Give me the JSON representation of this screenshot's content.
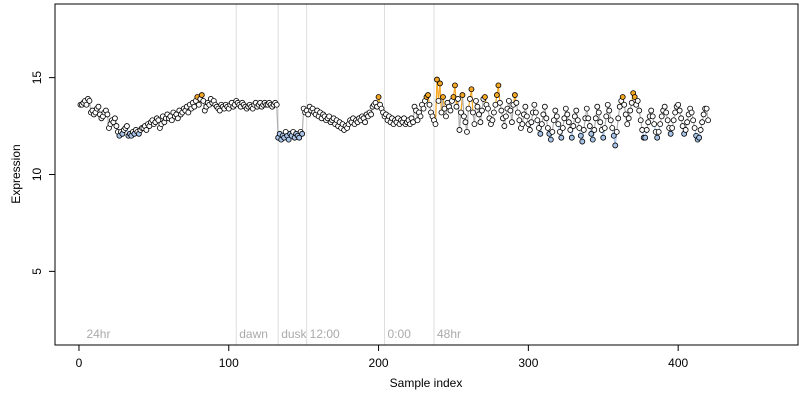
{
  "chart_data": {
    "type": "scatter",
    "title": "",
    "xlabel": "Sample index",
    "ylabel": "Expression",
    "xlim": [
      -16,
      480
    ],
    "ylim": [
      1.2,
      18.8
    ],
    "x_ticks": [
      0,
      100,
      200,
      300,
      400
    ],
    "y_ticks": [
      5,
      10,
      15
    ],
    "grid": false,
    "legend": "none",
    "colors": {
      "point_default": "#ffffff",
      "point_low": "#a9c6ea",
      "point_high": "#f5a623",
      "point_stroke": "#000000",
      "line_low": "#a9c6ea",
      "line_high": "#f5a623",
      "line_neutral": "#b0b0b0",
      "phase_line": "#dddddd",
      "phase_label": "#aaaaaa"
    },
    "phase_markers": [
      {
        "x": 3,
        "label": "24hr",
        "line": false
      },
      {
        "x": 105,
        "label": "dawn",
        "line": true
      },
      {
        "x": 133,
        "label": "dusk",
        "line": true
      },
      {
        "x": 152,
        "label": "12:00",
        "line": true
      },
      {
        "x": 204,
        "label": "0:00",
        "line": true
      },
      {
        "x": 237,
        "label": "48hr",
        "line": true
      }
    ],
    "series": [
      {
        "x_start": 1,
        "values": [
          13.6,
          13.6,
          13.7,
          13.8,
          13.6,
          13.9,
          13.8,
          13.2,
          13.3,
          13.1,
          13.2,
          13.4,
          13.5,
          13.1,
          12.9,
          13.0,
          13.2,
          13.3,
          13.1,
          12.4,
          12.6,
          12.8,
          12.7,
          12.9,
          12.5,
          12.2,
          12.0,
          12.2,
          12.1,
          12.3,
          12.4,
          12.5,
          12.0,
          12.1,
          12.0,
          12.2,
          12.1,
          12.3,
          12.2,
          12.1,
          12.3,
          12.4,
          12.4,
          12.5,
          12.3,
          12.6,
          12.5,
          12.7,
          12.8,
          12.6,
          12.7,
          12.9,
          12.8,
          12.4,
          12.6,
          13.0,
          12.7,
          12.9,
          13.1,
          12.9,
          13.0,
          12.8,
          13.2,
          13.0,
          13.1,
          12.9,
          13.3,
          13.1,
          13.2,
          13.4,
          13.3,
          13.5,
          13.2,
          13.6,
          13.4,
          13.7,
          13.5,
          13.8,
          14.0,
          13.6,
          13.9,
          14.1,
          13.8,
          13.3,
          13.5,
          13.7,
          13.6,
          13.9,
          13.7,
          13.8,
          13.6,
          13.5,
          13.4,
          13.3,
          13.6,
          13.5,
          13.4,
          13.6,
          13.5,
          13.4,
          13.6,
          13.7,
          13.5,
          13.6,
          13.8,
          13.7,
          13.6,
          13.5,
          13.7,
          13.6,
          13.5,
          13.4,
          13.5,
          13.6,
          13.5,
          13.4,
          13.6,
          13.7,
          13.5,
          13.6,
          13.7,
          13.5,
          13.6,
          13.7,
          13.6,
          13.6,
          13.7,
          13.6,
          13.5,
          13.6,
          13.7,
          13.6,
          11.9,
          12.1,
          11.8,
          12.0,
          11.9,
          12.2,
          12.0,
          11.8,
          12.1,
          12.0,
          12.2,
          11.9,
          12.1,
          12.0,
          11.9,
          12.2,
          12.1,
          13.4,
          13.2,
          13.3,
          13.1,
          13.5,
          13.3,
          13.4,
          13.2,
          13.1,
          13.3,
          13.0,
          13.2,
          12.9,
          13.1,
          13.0,
          12.8,
          12.9,
          13.0,
          12.7,
          12.8,
          12.9,
          12.6,
          12.8,
          12.5,
          12.7,
          12.4,
          12.6,
          12.3,
          12.5,
          12.4,
          12.6,
          12.8,
          12.7,
          12.9,
          12.6,
          12.8,
          12.7,
          12.9,
          12.8,
          13.0,
          12.9,
          12.7,
          13.1,
          13.0,
          13.2,
          13.1,
          13.5,
          13.6,
          13.7,
          13.5,
          14.0,
          13.6,
          13.4,
          13.2,
          13.0,
          13.1,
          12.8,
          13.0,
          12.7,
          12.9,
          12.6,
          12.8,
          12.7,
          12.9,
          12.6,
          12.8,
          12.7,
          12.9,
          12.6,
          12.7,
          12.8,
          12.6,
          12.9,
          12.7,
          13.5,
          13.3,
          12.8,
          13.2,
          13.0,
          13.6,
          13.4,
          13.8,
          14.0,
          14.1,
          13.6,
          13.2,
          13.0,
          12.8,
          12.6,
          14.9,
          13.8,
          14.7,
          13.2,
          14.0,
          13.4,
          13.0,
          13.7,
          13.5,
          13.3,
          13.8,
          14.0,
          14.6,
          13.5,
          13.9,
          12.3,
          13.2,
          14.1,
          13.0,
          12.7,
          12.2,
          13.4,
          13.9,
          14.4,
          13.2,
          12.6,
          13.8,
          13.5,
          13.1,
          12.7,
          13.3,
          13.9,
          14.0,
          13.6,
          13.4,
          12.9,
          12.6,
          12.8,
          13.2,
          13.6,
          14.1,
          14.6,
          13.7,
          13.3,
          12.9,
          12.5,
          13.0,
          13.4,
          13.8,
          13.3,
          12.7,
          13.6,
          14.1,
          13.7,
          13.2,
          12.8,
          12.4,
          12.6,
          13.1,
          13.5,
          13.0,
          12.6,
          12.3,
          12.7,
          13.2,
          13.6,
          13.2,
          12.8,
          12.4,
          12.1,
          12.6,
          13.1,
          13.5,
          12.9,
          12.4,
          12.1,
          11.8,
          12.2,
          12.8,
          13.3,
          13.0,
          12.6,
          12.2,
          11.9,
          12.4,
          12.9,
          13.4,
          13.1,
          12.7,
          12.3,
          11.9,
          12.5,
          13.0,
          13.3,
          12.8,
          12.4,
          12.0,
          11.7,
          12.3,
          12.9,
          13.4,
          12.9,
          12.5,
          12.1,
          11.8,
          12.3,
          12.9,
          13.5,
          13.2,
          12.7,
          12.3,
          11.9,
          12.4,
          13.0,
          13.6,
          13.3,
          12.8,
          12.4,
          12.0,
          11.5,
          12.2,
          12.9,
          13.5,
          13.8,
          14.0,
          13.6,
          13.1,
          12.6,
          12.9,
          13.3,
          13.7,
          14.2,
          14.0,
          13.6,
          13.8,
          13.3,
          12.8,
          12.3,
          11.9,
          11.9,
          12.3,
          12.7,
          13.0,
          13.3,
          13.0,
          12.6,
          12.2,
          11.9,
          12.2,
          12.6,
          13.0,
          13.3,
          13.5,
          13.2,
          12.8,
          12.4,
          12.1,
          12.4,
          12.8,
          13.2,
          13.5,
          13.6,
          13.3,
          12.9,
          12.5,
          12.1,
          12.3,
          12.7,
          13.1,
          13.4,
          13.2,
          12.8,
          12.4,
          12.0,
          11.8,
          11.9,
          12.3,
          12.7,
          13.1,
          13.4,
          13.4,
          12.8
        ]
      }
    ]
  }
}
